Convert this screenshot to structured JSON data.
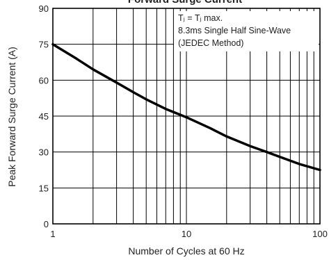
{
  "chart_data": {
    "type": "line",
    "title": "Forward Surge Current",
    "xlabel": "Number of Cycles at 60 Hz",
    "ylabel": "Peak Forward Surge Current (A)",
    "x_scale": "log",
    "xlim": [
      1,
      100
    ],
    "ylim": [
      0,
      90
    ],
    "x_ticks": [
      1,
      10,
      100
    ],
    "x_tick_labels": [
      "1",
      "10",
      "100"
    ],
    "y_ticks": [
      0,
      15,
      30,
      45,
      60,
      75,
      90
    ],
    "y_tick_labels": [
      "0",
      "15",
      "30",
      "45",
      "60",
      "75",
      "90"
    ],
    "grid": true,
    "annotation": [
      "Tⱼ = Tⱼ max.",
      "8.3ms Single Half Sine-Wave",
      "(JEDEC Method)"
    ],
    "series": [
      {
        "x": [
          1,
          1.5,
          2,
          3,
          4,
          5,
          7,
          10,
          15,
          20,
          30,
          40,
          50,
          70,
          100
        ],
        "values": [
          75,
          69,
          64.5,
          59,
          55,
          52,
          48,
          44.5,
          40,
          36.5,
          32.5,
          30,
          28,
          25,
          22.5
        ]
      }
    ]
  }
}
